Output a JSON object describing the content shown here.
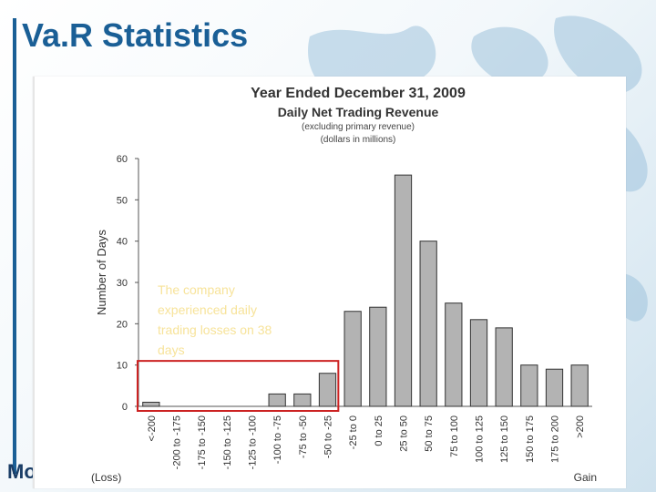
{
  "slide": {
    "title": "Va.R Statistics",
    "logo_text": "Mo"
  },
  "colors": {
    "title": "#1a5f96",
    "bar_fill": "#b3b3b3",
    "bar_stroke": "#333333",
    "highlight_box": "#cc2222",
    "annotation_text": "#f7e39a"
  },
  "chart_data": {
    "type": "bar",
    "title": "Year Ended December 31, 2009",
    "subtitle": "Daily Net Trading Revenue",
    "subtitle_note_1": "(excluding primary revenue)",
    "subtitle_note_2": "(dollars in millions)",
    "ylabel": "Number of Days",
    "ylim": [
      0,
      60
    ],
    "yticks": [
      0,
      10,
      20,
      30,
      40,
      50,
      60
    ],
    "grid": false,
    "categories": [
      "<-200",
      "-200 to -175",
      "-175 to -150",
      "-150 to -125",
      "-125 to -100",
      "-100 to -75",
      "-75 to -50",
      "-50 to -25",
      "-25 to 0",
      "0 to 25",
      "25 to 50",
      "50 to 75",
      "75 to 100",
      "100 to 125",
      "125 to 150",
      "150 to 175",
      "175 to 200",
      ">200"
    ],
    "values": [
      1,
      0,
      0,
      0,
      0,
      3,
      3,
      8,
      23,
      24,
      56,
      40,
      25,
      21,
      19,
      10,
      9,
      10
    ],
    "x_end_labels": {
      "left": "(Loss)",
      "right": "Gain"
    },
    "annotation": "The company experienced daily trading losses on 38 days",
    "highlighted_categories": [
      "<-200",
      "-50 to -25"
    ]
  }
}
